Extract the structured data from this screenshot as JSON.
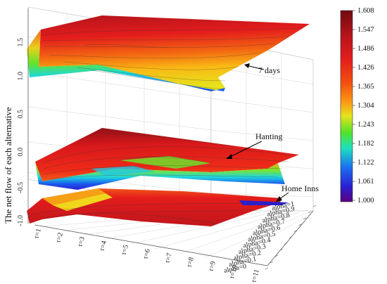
{
  "chart_data": {
    "type": "surface-3d",
    "ylabel": "The net flow of each alternative",
    "zticks": [
      "1.5",
      "1.0",
      "0.5",
      "0.0",
      "-0.5",
      "-1.0"
    ],
    "xticks": [
      "τ=1",
      "τ=2",
      "τ=3",
      "τ=4",
      "τ=5",
      "τ=6",
      "τ=7",
      "τ=8",
      "τ=9",
      "τ=10",
      "τ=11"
    ],
    "alphaticks": [
      "alpha=1",
      "alpha=0.9",
      "alpha=0.8",
      "alpha=0.7",
      "alpha=0.6",
      "alpha=0.5",
      "alpha=0.4",
      "alpha=0.3",
      "alpha=0.2",
      "alpha=0.1",
      "alpha=0"
    ],
    "colorbar": {
      "ticks": [
        "1.608",
        "1.547",
        "1.486",
        "1.426",
        "1.365",
        "1.304",
        "1.243",
        "1.182",
        "1.122",
        "1.061",
        "1.000"
      ],
      "colors": [
        "#7a0d12",
        "#b1141b",
        "#e01b1b",
        "#f24a12",
        "#f98a14",
        "#e6e21c",
        "#6fe31f",
        "#1fe2b0",
        "#1b7cf0",
        "#2a1fd0",
        "#5a007a"
      ]
    },
    "series": [
      {
        "name": "7 days",
        "zmin": 1.0,
        "zmax": 1.6
      },
      {
        "name": "Hanting",
        "zmin": -0.5,
        "zmax": 0.0
      },
      {
        "name": "Home Inns",
        "zmin": -1.0,
        "zmax": -0.7
      }
    ]
  }
}
